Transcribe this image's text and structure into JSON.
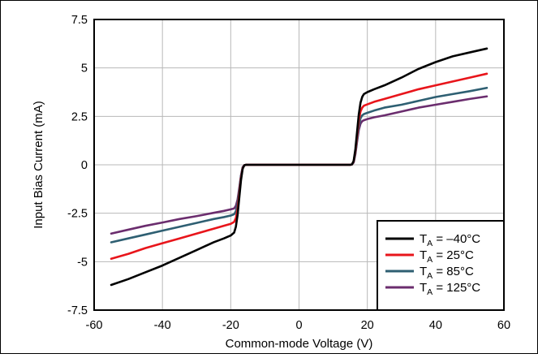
{
  "chart_data": {
    "type": "line",
    "title": "",
    "xlabel": "Common-mode Voltage (V)",
    "ylabel": "Input Bias Current (mA)",
    "xlim": [
      -60,
      60
    ],
    "ylim": [
      -7.5,
      7.5
    ],
    "xticks": [
      "-60",
      "-40",
      "-20",
      "0",
      "20",
      "40",
      "60"
    ],
    "yticks": [
      "7.5",
      "5",
      "2.5",
      "0",
      "-2.5",
      "-5",
      "-7.5"
    ],
    "grid": true,
    "legend_position": "bottom-right",
    "series": [
      {
        "name": "T_A = –40°C",
        "name_main": "T",
        "name_sub": "A",
        "name_rest": " = –40°C",
        "color": "#000000",
        "x": [
          -55,
          -50,
          -45,
          -40,
          -35,
          -30,
          -25,
          -22,
          -20,
          -19,
          -18.5,
          -18,
          -17.5,
          -17,
          -16.5,
          -16,
          -15.5,
          -15,
          -10,
          0,
          10,
          15,
          15.5,
          16,
          16.5,
          17,
          17.5,
          18,
          18.5,
          19,
          20,
          22,
          25,
          30,
          35,
          40,
          45,
          50,
          55
        ],
        "y": [
          -6.2,
          -5.9,
          -5.55,
          -5.2,
          -4.8,
          -4.4,
          -4.0,
          -3.8,
          -3.65,
          -3.5,
          -3.2,
          -2.6,
          -1.7,
          -0.8,
          -0.2,
          -0.02,
          0,
          0,
          0,
          0,
          0,
          0,
          0.02,
          0.2,
          0.8,
          1.7,
          2.6,
          3.2,
          3.5,
          3.65,
          3.75,
          3.9,
          4.1,
          4.5,
          4.95,
          5.3,
          5.6,
          5.8,
          6.0
        ]
      },
      {
        "name": "T_A = 25°C",
        "name_main": "T",
        "name_sub": "A",
        "name_rest": " = 25°C",
        "color": "#e8151b",
        "x": [
          -55,
          -50,
          -45,
          -40,
          -35,
          -30,
          -25,
          -22,
          -20,
          -19,
          -18.5,
          -18,
          -17.5,
          -17,
          -16.5,
          -16,
          -15.5,
          -15,
          -10,
          0,
          10,
          15,
          15.5,
          16,
          16.5,
          17,
          17.5,
          18,
          18.5,
          19,
          20,
          22,
          25,
          30,
          35,
          40,
          45,
          50,
          55
        ],
        "y": [
          -4.85,
          -4.6,
          -4.3,
          -4.05,
          -3.8,
          -3.55,
          -3.3,
          -3.15,
          -3.05,
          -2.95,
          -2.75,
          -2.3,
          -1.5,
          -0.7,
          -0.18,
          -0.02,
          0,
          0,
          0,
          0,
          0,
          0,
          0.02,
          0.18,
          0.7,
          1.5,
          2.3,
          2.75,
          2.95,
          3.05,
          3.12,
          3.25,
          3.4,
          3.65,
          3.9,
          4.1,
          4.3,
          4.5,
          4.7
        ]
      },
      {
        "name": "T_A = 85°C",
        "name_main": "T",
        "name_sub": "A",
        "name_rest": " = 85°C",
        "color": "#2e5f72",
        "x": [
          -55,
          -50,
          -45,
          -40,
          -35,
          -30,
          -25,
          -22,
          -20,
          -19,
          -18.5,
          -18,
          -17.5,
          -17,
          -16.5,
          -16,
          -15.5,
          -15,
          -10,
          0,
          10,
          15,
          15.5,
          16,
          16.5,
          17,
          17.5,
          18,
          18.5,
          19,
          20,
          22,
          25,
          30,
          35,
          40,
          45,
          50,
          55
        ],
        "y": [
          -4.0,
          -3.8,
          -3.6,
          -3.4,
          -3.2,
          -3.0,
          -2.8,
          -2.7,
          -2.62,
          -2.55,
          -2.4,
          -2.0,
          -1.3,
          -0.6,
          -0.15,
          -0.02,
          0,
          0,
          0,
          0,
          0,
          0,
          0.02,
          0.15,
          0.6,
          1.3,
          2.0,
          2.4,
          2.55,
          2.62,
          2.68,
          2.8,
          2.95,
          3.1,
          3.3,
          3.5,
          3.65,
          3.8,
          3.97
        ]
      },
      {
        "name": "T_A = 125°C",
        "name_main": "T",
        "name_sub": "A",
        "name_rest": " = 125°C",
        "color": "#6b2d6e",
        "x": [
          -55,
          -50,
          -45,
          -40,
          -35,
          -30,
          -25,
          -22,
          -20,
          -19,
          -18.5,
          -18,
          -17.5,
          -17,
          -16.5,
          -16,
          -15.5,
          -15,
          -10,
          0,
          10,
          15,
          15.5,
          16,
          16.5,
          17,
          17.5,
          18,
          18.5,
          19,
          20,
          22,
          25,
          30,
          35,
          40,
          45,
          50,
          55
        ],
        "y": [
          -3.55,
          -3.35,
          -3.15,
          -2.98,
          -2.8,
          -2.65,
          -2.48,
          -2.38,
          -2.3,
          -2.25,
          -2.12,
          -1.8,
          -1.2,
          -0.55,
          -0.12,
          -0.02,
          0,
          0,
          0,
          0,
          0,
          0,
          0.02,
          0.12,
          0.55,
          1.2,
          1.8,
          2.12,
          2.25,
          2.3,
          2.36,
          2.45,
          2.55,
          2.75,
          2.95,
          3.1,
          3.25,
          3.4,
          3.53
        ]
      }
    ]
  }
}
